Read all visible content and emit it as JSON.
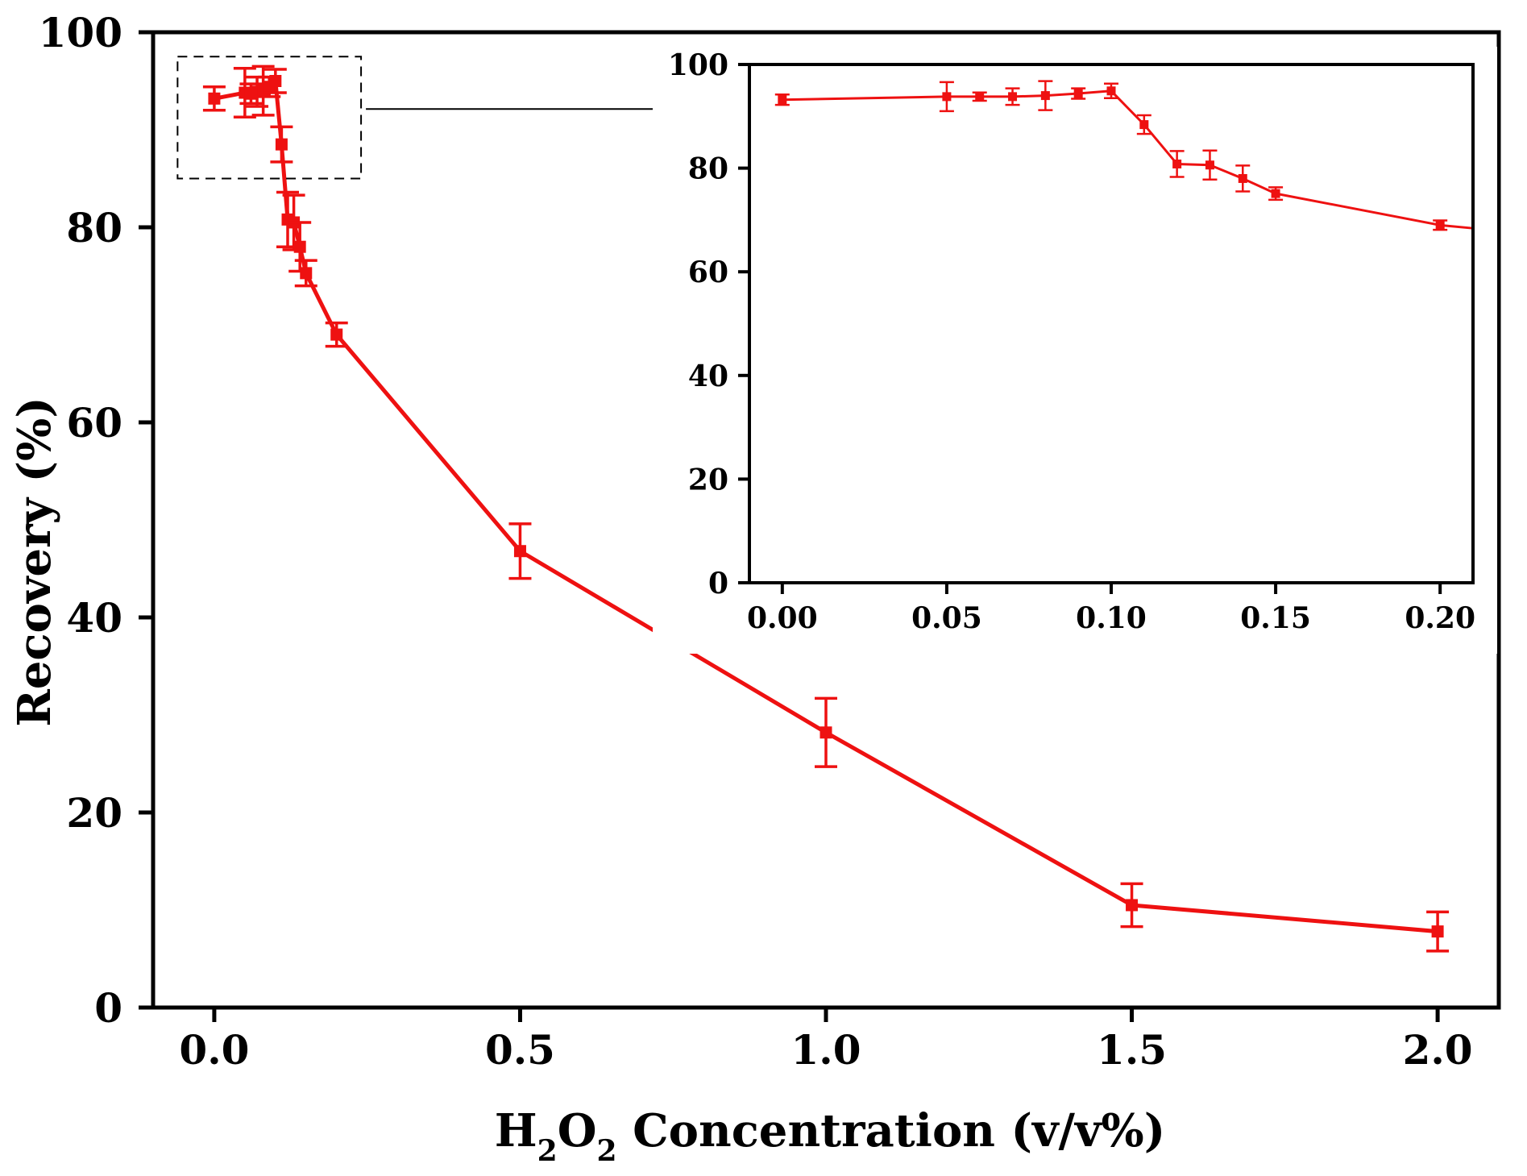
{
  "chart_data": [
    {
      "type": "line",
      "panel": "main",
      "title": "",
      "xlabel": {
        "prefix": "H",
        "sub1": "2",
        "mid": "O",
        "sub2": "2",
        "suffix": " Concentration (v/v%)"
      },
      "ylabel": "Recovery (%)",
      "xlim": [
        -0.1,
        2.1
      ],
      "ylim": [
        0,
        100
      ],
      "xticks": [
        0.0,
        0.5,
        1.0,
        1.5,
        2.0
      ],
      "xtick_labels": [
        "0.0",
        "0.5",
        "1.0",
        "1.5",
        "2.0"
      ],
      "yticks": [
        0,
        20,
        40,
        60,
        80,
        100
      ],
      "ytick_labels": [
        "0",
        "20",
        "40",
        "60",
        "80",
        "100"
      ],
      "grid": false,
      "legend": "none",
      "series": [
        {
          "color": "#ee1111",
          "marker": "square",
          "points": [
            {
              "x": 0.0,
              "y": 93.2,
              "err": 1.2
            },
            {
              "x": 0.05,
              "y": 93.8,
              "err": 2.5
            },
            {
              "x": 0.06,
              "y": 93.7,
              "err": 1.0
            },
            {
              "x": 0.07,
              "y": 93.9,
              "err": 1.5
            },
            {
              "x": 0.08,
              "y": 94.0,
              "err": 2.5
            },
            {
              "x": 0.09,
              "y": 94.4,
              "err": 1.0
            },
            {
              "x": 0.1,
              "y": 95.0,
              "err": 1.2
            },
            {
              "x": 0.11,
              "y": 88.5,
              "err": 1.8
            },
            {
              "x": 0.12,
              "y": 80.8,
              "err": 2.8
            },
            {
              "x": 0.13,
              "y": 80.5,
              "err": 2.8
            },
            {
              "x": 0.14,
              "y": 78.0,
              "err": 2.5
            },
            {
              "x": 0.15,
              "y": 75.3,
              "err": 1.3
            },
            {
              "x": 0.2,
              "y": 69.0,
              "err": 1.2
            },
            {
              "x": 0.5,
              "y": 46.8,
              "err": 2.8
            },
            {
              "x": 1.0,
              "y": 28.2,
              "err": 3.5
            },
            {
              "x": 1.5,
              "y": 10.5,
              "err": 2.2
            },
            {
              "x": 2.0,
              "y": 7.8,
              "err": 2.0
            }
          ]
        }
      ],
      "annotations": {
        "zoom_box": {
          "x_range": [
            -0.06,
            0.24
          ],
          "y_range": [
            85,
            97.5
          ]
        },
        "arrow": "dashed box to inset"
      }
    },
    {
      "type": "line",
      "panel": "inset",
      "title": "",
      "xlabel": "",
      "ylabel": "",
      "xlim": [
        -0.01,
        0.21
      ],
      "ylim": [
        0,
        100
      ],
      "xticks": [
        0.0,
        0.05,
        0.1,
        0.15,
        0.2
      ],
      "xtick_labels": [
        "0.00",
        "0.05",
        "0.10",
        "0.15",
        "0.20"
      ],
      "yticks": [
        0,
        20,
        40,
        60,
        80,
        100
      ],
      "ytick_labels": [
        "0",
        "20",
        "40",
        "60",
        "80",
        "100"
      ],
      "grid": false,
      "legend": "none",
      "line_extends_to": {
        "x": 0.21,
        "y": 68.4
      },
      "series": [
        {
          "color": "#ee1111",
          "marker": "square",
          "points": [
            {
              "x": 0.0,
              "y": 93.2,
              "err": 1.0
            },
            {
              "x": 0.05,
              "y": 93.8,
              "err": 2.8
            },
            {
              "x": 0.06,
              "y": 93.8,
              "err": 0.8
            },
            {
              "x": 0.07,
              "y": 93.8,
              "err": 1.6
            },
            {
              "x": 0.08,
              "y": 94.0,
              "err": 2.8
            },
            {
              "x": 0.09,
              "y": 94.4,
              "err": 1.0
            },
            {
              "x": 0.1,
              "y": 94.9,
              "err": 1.4
            },
            {
              "x": 0.11,
              "y": 88.4,
              "err": 1.8
            },
            {
              "x": 0.12,
              "y": 80.8,
              "err": 2.5
            },
            {
              "x": 0.13,
              "y": 80.6,
              "err": 2.8
            },
            {
              "x": 0.14,
              "y": 78.0,
              "err": 2.5
            },
            {
              "x": 0.15,
              "y": 75.1,
              "err": 1.2
            },
            {
              "x": 0.2,
              "y": 69.0,
              "err": 0.9
            }
          ]
        }
      ]
    }
  ]
}
